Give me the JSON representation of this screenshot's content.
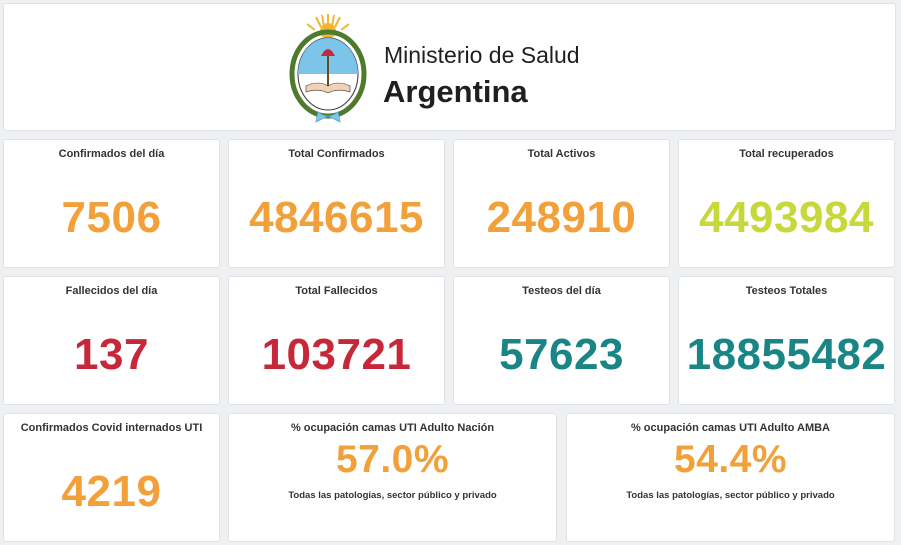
{
  "header": {
    "ministry": "Ministerio de Salud",
    "country": "Argentina"
  },
  "colors": {
    "orange": "#f2a03a",
    "lime": "#c7d83a",
    "red": "#c6283a",
    "teal": "#1a8585"
  },
  "cards": {
    "confirmados_dia": {
      "title": "Confirmados del día",
      "value": "7506"
    },
    "total_confirmados": {
      "title": "Total Confirmados",
      "value": "4846615"
    },
    "total_activos": {
      "title": "Total Activos",
      "value": "248910"
    },
    "total_recuperados": {
      "title": "Total recuperados",
      "value": "4493984"
    },
    "fallecidos_dia": {
      "title": "Fallecidos del día",
      "value": "137"
    },
    "total_fallecidos": {
      "title": "Total Fallecidos",
      "value": "103721"
    },
    "testeos_dia": {
      "title": "Testeos del día",
      "value": "57623"
    },
    "testeos_totales": {
      "title": "Testeos Totales",
      "value": "18855482"
    },
    "internados_uti": {
      "title": "Confirmados Covid internados UTI",
      "value": "4219"
    },
    "ocupacion_nacion": {
      "title": "% ocupación camas UTI Adulto Nación",
      "value": "57.0%",
      "subtitle": "Todas las patologías, sector público y privado"
    },
    "ocupacion_amba": {
      "title": "% ocupación camas UTI Adulto AMBA",
      "value": "54.4%",
      "subtitle": "Todas las patologías, sector público y privado"
    }
  }
}
